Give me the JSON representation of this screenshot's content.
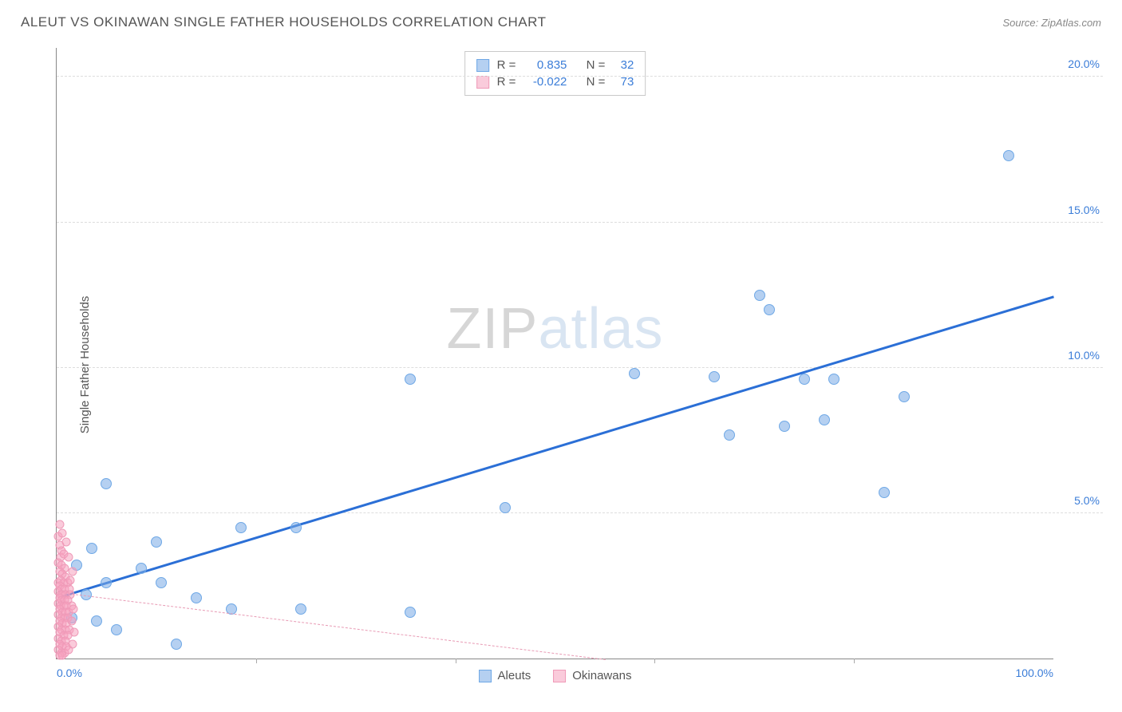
{
  "title": "ALEUT VS OKINAWAN SINGLE FATHER HOUSEHOLDS CORRELATION CHART",
  "source": "Source: ZipAtlas.com",
  "ylabel": "Single Father Households",
  "watermark": {
    "zip": "ZIP",
    "atlas": "atlas"
  },
  "chart": {
    "type": "scatter",
    "background_color": "#ffffff",
    "grid_color": "#dddddd",
    "axis_color": "#888888",
    "tick_label_color": "#3b7dd8",
    "label_color": "#555555",
    "title_fontsize": 17,
    "label_fontsize": 15,
    "tick_fontsize": 14,
    "xlim": [
      0,
      100
    ],
    "ylim": [
      0,
      21
    ],
    "yticks": [
      {
        "v": 5,
        "label": "5.0%"
      },
      {
        "v": 10,
        "label": "10.0%"
      },
      {
        "v": 15,
        "label": "15.0%"
      },
      {
        "v": 20,
        "label": "20.0%"
      }
    ],
    "xtick_marks": [
      20,
      40,
      60,
      80
    ],
    "xtick_labels": [
      {
        "v": 0,
        "label": "0.0%",
        "align": "left"
      },
      {
        "v": 100,
        "label": "100.0%",
        "align": "right"
      }
    ],
    "series": [
      {
        "name": "Aleuts",
        "marker_color_fill": "rgba(120,170,230,0.55)",
        "marker_color_stroke": "#6fa8e6",
        "marker_size": 14,
        "reg_color": "#2b6fd6",
        "reg_width": 3,
        "reg_dash": "solid",
        "reg_p1": [
          0.5,
          2.2
        ],
        "reg_p2": [
          100,
          12.5
        ],
        "stats": {
          "R": "0.835",
          "N": "32"
        },
        "points": [
          [
            95.5,
            17.3
          ],
          [
            70.5,
            12.5
          ],
          [
            71.5,
            12.0
          ],
          [
            75.0,
            9.6
          ],
          [
            78.0,
            9.6
          ],
          [
            85.0,
            9.0
          ],
          [
            58.0,
            9.8
          ],
          [
            66.0,
            9.7
          ],
          [
            35.5,
            9.6
          ],
          [
            73.0,
            8.0
          ],
          [
            77.0,
            8.2
          ],
          [
            67.5,
            7.7
          ],
          [
            83.0,
            5.7
          ],
          [
            5.0,
            6.0
          ],
          [
            45.0,
            5.2
          ],
          [
            18.5,
            4.5
          ],
          [
            24.0,
            4.5
          ],
          [
            10.0,
            4.0
          ],
          [
            3.5,
            3.8
          ],
          [
            2.0,
            3.2
          ],
          [
            8.5,
            3.1
          ],
          [
            5.0,
            2.6
          ],
          [
            10.5,
            2.6
          ],
          [
            14.0,
            2.1
          ],
          [
            3.0,
            2.2
          ],
          [
            17.5,
            1.7
          ],
          [
            24.5,
            1.7
          ],
          [
            35.5,
            1.6
          ],
          [
            1.5,
            1.4
          ],
          [
            4.0,
            1.3
          ],
          [
            12.0,
            0.5
          ],
          [
            6.0,
            1.0
          ]
        ]
      },
      {
        "name": "Okinawans",
        "marker_color_fill": "rgba(245,160,190,0.55)",
        "marker_color_stroke": "#ef9ab8",
        "marker_size": 11,
        "reg_color": "#e89ab4",
        "reg_width": 1,
        "reg_dash": "5,5",
        "reg_p1": [
          0.3,
          2.3
        ],
        "reg_p2": [
          55,
          0.0
        ],
        "stats": {
          "R": "-0.022",
          "N": "73"
        },
        "points": [
          [
            0.3,
            4.6
          ],
          [
            0.2,
            4.2
          ],
          [
            0.6,
            4.3
          ],
          [
            0.3,
            3.9
          ],
          [
            0.5,
            3.7
          ],
          [
            0.4,
            3.5
          ],
          [
            0.7,
            3.6
          ],
          [
            0.2,
            3.3
          ],
          [
            0.5,
            3.2
          ],
          [
            0.8,
            3.1
          ],
          [
            0.3,
            3.0
          ],
          [
            0.6,
            2.9
          ],
          [
            0.9,
            2.8
          ],
          [
            0.4,
            2.7
          ],
          [
            0.2,
            2.6
          ],
          [
            0.7,
            2.6
          ],
          [
            1.1,
            2.6
          ],
          [
            0.3,
            2.5
          ],
          [
            0.5,
            2.4
          ],
          [
            0.8,
            2.4
          ],
          [
            1.3,
            2.4
          ],
          [
            0.2,
            2.3
          ],
          [
            0.4,
            2.2
          ],
          [
            0.6,
            2.2
          ],
          [
            0.9,
            2.2
          ],
          [
            1.4,
            2.2
          ],
          [
            0.3,
            2.1
          ],
          [
            0.5,
            2.0
          ],
          [
            0.8,
            2.0
          ],
          [
            1.1,
            2.0
          ],
          [
            0.2,
            1.9
          ],
          [
            0.4,
            1.8
          ],
          [
            0.7,
            1.8
          ],
          [
            1.0,
            1.8
          ],
          [
            1.5,
            1.8
          ],
          [
            0.3,
            1.7
          ],
          [
            0.6,
            1.6
          ],
          [
            0.9,
            1.6
          ],
          [
            1.2,
            1.6
          ],
          [
            0.2,
            1.5
          ],
          [
            0.5,
            1.4
          ],
          [
            0.8,
            1.4
          ],
          [
            1.1,
            1.4
          ],
          [
            0.3,
            1.3
          ],
          [
            0.6,
            1.2
          ],
          [
            1.0,
            1.2
          ],
          [
            0.2,
            1.1
          ],
          [
            0.5,
            1.0
          ],
          [
            0.9,
            1.0
          ],
          [
            1.3,
            1.0
          ],
          [
            0.3,
            0.9
          ],
          [
            0.7,
            0.8
          ],
          [
            1.1,
            0.8
          ],
          [
            0.2,
            0.7
          ],
          [
            0.5,
            0.6
          ],
          [
            0.9,
            0.6
          ],
          [
            0.3,
            0.5
          ],
          [
            0.6,
            0.4
          ],
          [
            1.0,
            0.4
          ],
          [
            0.2,
            0.3
          ],
          [
            0.5,
            0.2
          ],
          [
            0.8,
            0.2
          ],
          [
            0.3,
            0.1
          ],
          [
            0.6,
            0.1
          ],
          [
            1.2,
            0.3
          ],
          [
            1.6,
            0.5
          ],
          [
            1.8,
            0.9
          ],
          [
            1.5,
            1.3
          ],
          [
            1.7,
            1.7
          ],
          [
            1.4,
            2.7
          ],
          [
            1.6,
            3.0
          ],
          [
            1.2,
            3.5
          ],
          [
            1.0,
            4.0
          ]
        ]
      }
    ]
  },
  "stats_box": {
    "r_label": "R =",
    "n_label": "N ="
  },
  "legend": {
    "items": [
      "Aleuts",
      "Okinawans"
    ]
  }
}
